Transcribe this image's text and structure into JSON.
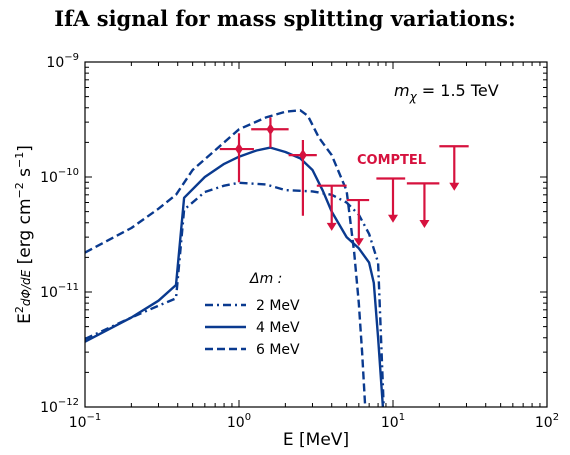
{
  "title": "IfA signal for mass splitting variations:",
  "chart_data": {
    "type": "line",
    "xlabel": "E [MeV]",
    "ylabel": "E^2 dΦ/dE [erg cm^-2 s^-1]",
    "x_scale": "log",
    "y_scale": "log",
    "xlim": [
      0.1,
      100
    ],
    "ylim": [
      1e-12,
      1e-09
    ],
    "x_ticks": [
      {
        "value": 0.1,
        "base": "10",
        "exp": "−1"
      },
      {
        "value": 1,
        "base": "10",
        "exp": "0"
      },
      {
        "value": 10,
        "base": "10",
        "exp": "1"
      },
      {
        "value": 100,
        "base": "10",
        "exp": "2"
      }
    ],
    "y_ticks": [
      {
        "value": 1e-12,
        "base": "10",
        "exp": "−12"
      },
      {
        "value": 1e-11,
        "base": "10",
        "exp": "−11"
      },
      {
        "value": 1e-10,
        "base": "10",
        "exp": "−10"
      },
      {
        "value": 1e-09,
        "base": "10",
        "exp": "−9"
      }
    ],
    "annotation": {
      "symbol": "m",
      "subscript": "χ",
      "text": " = 1.5 TeV"
    },
    "legend": {
      "title": "Δm :",
      "location": "lower-left"
    },
    "line_color": "#0a3a8f",
    "series": [
      {
        "name": "2 MeV",
        "dash": "dashdot",
        "x": [
          0.1,
          0.2,
          0.3,
          0.39,
          0.44,
          0.6,
          0.8,
          1.0,
          1.5,
          2.0,
          3.0,
          4.0,
          5.0,
          6.0,
          7.0,
          8.0,
          8.7
        ],
        "y": [
          3.9e-12,
          6e-12,
          7.6e-12,
          8.8e-12,
          5.2e-11,
          7.4e-11,
          8.4e-11,
          8.9e-11,
          8.6e-11,
          7.7e-11,
          7.5e-11,
          7e-11,
          6e-11,
          4.7e-11,
          3.2e-11,
          1.8e-11,
          1e-12
        ]
      },
      {
        "name": "4 MeV",
        "dash": "solid",
        "x": [
          0.1,
          0.2,
          0.3,
          0.39,
          0.44,
          0.6,
          0.8,
          1.0,
          1.3,
          1.6,
          2.0,
          2.5,
          3.0,
          3.5,
          4.0,
          5.0,
          6.0,
          7.0,
          7.5,
          8.0,
          8.6
        ],
        "y": [
          3.7e-12,
          6e-12,
          8.4e-12,
          1.15e-11,
          6.6e-11,
          1e-10,
          1.3e-10,
          1.5e-10,
          1.7e-10,
          1.8e-10,
          1.65e-10,
          1.45e-10,
          1.15e-10,
          7.6e-11,
          5e-11,
          3e-11,
          2.4e-11,
          1.8e-11,
          1.2e-11,
          4e-12,
          1e-12
        ]
      },
      {
        "name": "6 MeV",
        "dash": "dashed",
        "x": [
          0.1,
          0.2,
          0.3,
          0.39,
          0.5,
          0.8,
          1.0,
          1.5,
          2.0,
          2.5,
          2.8,
          3.3,
          4.0,
          5.0,
          5.6,
          6.0,
          6.3,
          6.6
        ],
        "y": [
          2.2e-11,
          3.6e-11,
          5.3e-11,
          7e-11,
          1.15e-10,
          2e-10,
          2.6e-10,
          3.3e-10,
          3.7e-10,
          3.8e-10,
          3.4e-10,
          2.2e-10,
          1.55e-10,
          7.6e-11,
          2.2e-11,
          8e-12,
          3e-12,
          1e-12
        ]
      }
    ],
    "comptel": {
      "label": "COMPTEL",
      "color": "#d6123e",
      "points": [
        {
          "x": 1.0,
          "y": 1.75e-10,
          "x_lo": 0.75,
          "x_hi": 1.25,
          "y_lo": 9e-11,
          "y_hi": 2.4e-10
        },
        {
          "x": 1.6,
          "y": 2.6e-10,
          "x_lo": 1.2,
          "x_hi": 2.1,
          "y_lo": 1.8e-10,
          "y_hi": 3.3e-10
        },
        {
          "x": 2.6,
          "y": 1.55e-10,
          "x_lo": 2.1,
          "x_hi": 3.2,
          "y_lo": 4.6e-11,
          "y_hi": 2.1e-10
        }
      ],
      "upper_limits": [
        {
          "x": 4.0,
          "x_lo": 3.2,
          "x_hi": 5.0,
          "y": 8.4e-11,
          "y_arrow": 3.4e-11
        },
        {
          "x": 6.0,
          "x_lo": 5.0,
          "x_hi": 7.0,
          "y": 6.3e-11,
          "y_arrow": 2.5e-11
        },
        {
          "x": 10.0,
          "x_lo": 7.8,
          "x_hi": 12.0,
          "y": 9.7e-11,
          "y_arrow": 4e-11
        },
        {
          "x": 16.0,
          "x_lo": 12.3,
          "x_hi": 20.0,
          "y": 8.8e-11,
          "y_arrow": 3.6e-11
        },
        {
          "x": 25.0,
          "x_lo": 20.0,
          "x_hi": 31.0,
          "y": 1.85e-10,
          "y_arrow": 7.6e-11
        }
      ]
    }
  }
}
